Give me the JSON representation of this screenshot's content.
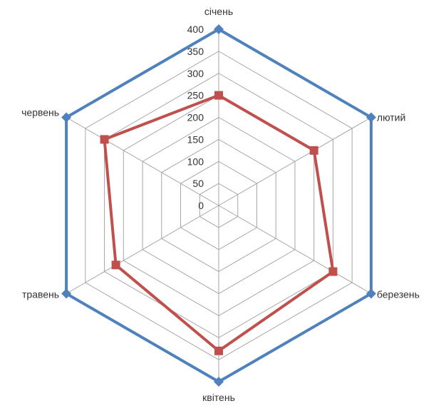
{
  "chart_data": {
    "type": "radar",
    "categories": [
      "січень",
      "лютий",
      "березень",
      "квітень",
      "травень",
      "червень"
    ],
    "ticks": [
      "0",
      "50",
      "100",
      "150",
      "200",
      "250",
      "300",
      "350",
      "400"
    ],
    "rlim": [
      0,
      400
    ],
    "grid": true,
    "legend": "none",
    "series": [
      {
        "values": [
          250,
          250,
          300,
          330,
          270,
          300
        ],
        "color": "#c0504d",
        "marker": "square"
      },
      {
        "values": [
          400,
          400,
          400,
          400,
          400,
          400
        ],
        "color": "#4f81bd",
        "marker": "diamond"
      }
    ]
  }
}
